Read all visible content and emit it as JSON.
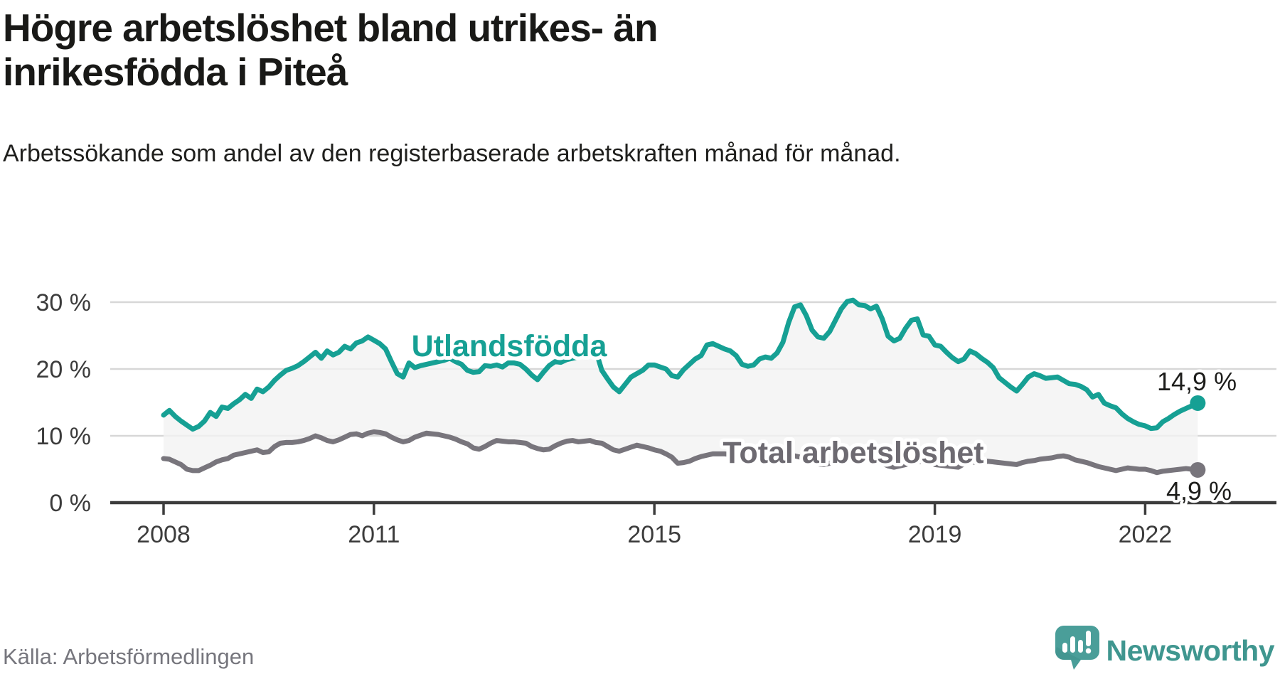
{
  "header": {
    "title_lines": [
      "Högre arbetslöshet bland utrikes- än",
      "inrikesfödda i Piteå"
    ],
    "subtitle": "Arbetssökande som andel av den registerbaserade arbetskraften månad för månad."
  },
  "chart_data": {
    "type": "line",
    "title": "Högre arbetslöshet bland utrikes- än inrikesfödda i Piteå",
    "subtitle": "Arbetssökande som andel av den registerbaserade arbetskraften månad för månad.",
    "x_unit": "month",
    "x_range": [
      "2008-01",
      "2022-10"
    ],
    "x_tick_years": [
      2008,
      2011,
      2015,
      2019,
      2022
    ],
    "x_tick_labels": [
      "2008",
      "2011",
      "2015",
      "2019",
      "2022"
    ],
    "y_ticks": [
      0,
      10,
      20,
      30
    ],
    "y_tick_labels": [
      "0 %",
      "10 %",
      "20 %",
      "30 %"
    ],
    "ylim": [
      0,
      32
    ],
    "grid": true,
    "legend_position": "inline-labels",
    "band_fill": "#f2f2f2",
    "series": [
      {
        "name": "Utlandsfödda",
        "color": "#16a094",
        "end_label": "14,9 %",
        "end_value": 14.9,
        "values": [
          13.1,
          13.8,
          12.9,
          12.2,
          11.6,
          11.0,
          11.4,
          12.2,
          13.5,
          12.9,
          14.3,
          14.1,
          14.8,
          15.4,
          16.2,
          15.6,
          17.0,
          16.6,
          17.3,
          18.3,
          19.1,
          19.8,
          20.1,
          20.5,
          21.1,
          21.8,
          22.5,
          21.6,
          22.7,
          22.1,
          22.5,
          23.4,
          23.0,
          23.9,
          24.2,
          24.8,
          24.3,
          23.8,
          23.0,
          21.1,
          19.3,
          18.8,
          20.9,
          20.2,
          20.5,
          20.7,
          20.9,
          21.1,
          21.3,
          21.6,
          21.1,
          20.7,
          19.8,
          19.5,
          19.6,
          20.5,
          20.4,
          20.6,
          20.3,
          20.9,
          20.9,
          20.7,
          20.0,
          19.1,
          18.4,
          19.5,
          20.5,
          21.1,
          21.0,
          21.4,
          21.6,
          21.8,
          22.0,
          22.5,
          22.7,
          19.8,
          18.5,
          17.3,
          16.6,
          17.7,
          18.8,
          19.3,
          19.8,
          20.6,
          20.6,
          20.3,
          20.0,
          19.0,
          18.8,
          19.9,
          20.7,
          21.5,
          22.0,
          23.6,
          23.8,
          23.4,
          23.0,
          22.7,
          22.0,
          20.7,
          20.4,
          20.6,
          21.5,
          21.8,
          21.6,
          22.4,
          24.0,
          27.0,
          29.3,
          29.6,
          28.0,
          25.8,
          24.8,
          24.6,
          25.6,
          27.3,
          29.0,
          30.1,
          30.3,
          29.6,
          29.5,
          29.0,
          29.4,
          27.5,
          24.9,
          24.2,
          24.6,
          26.1,
          27.3,
          27.5,
          25.1,
          24.9,
          23.6,
          23.4,
          22.5,
          21.7,
          21.1,
          21.5,
          22.7,
          22.3,
          21.6,
          21.0,
          20.2,
          18.7,
          18.0,
          17.3,
          16.7,
          17.7,
          18.8,
          19.3,
          19.0,
          18.6,
          18.7,
          18.8,
          18.3,
          17.8,
          17.7,
          17.4,
          16.9,
          15.8,
          16.2,
          14.9,
          14.5,
          14.2,
          13.3,
          12.6,
          12.1,
          11.7,
          11.5,
          11.1,
          11.2,
          12.1,
          12.6,
          13.2,
          13.7,
          14.1,
          14.5,
          14.9
        ]
      },
      {
        "name": "Total arbetslöshet",
        "color": "#78757c",
        "end_label": "4,9 %",
        "end_value": 4.9,
        "values": [
          6.6,
          6.5,
          6.1,
          5.7,
          5.0,
          4.8,
          4.8,
          5.2,
          5.6,
          6.1,
          6.4,
          6.6,
          7.1,
          7.3,
          7.5,
          7.7,
          7.9,
          7.5,
          7.6,
          8.4,
          8.9,
          9.0,
          9.0,
          9.1,
          9.3,
          9.6,
          10.0,
          9.7,
          9.3,
          9.1,
          9.4,
          9.8,
          10.2,
          10.3,
          10.0,
          10.4,
          10.6,
          10.5,
          10.3,
          9.8,
          9.4,
          9.1,
          9.3,
          9.8,
          10.1,
          10.4,
          10.3,
          10.2,
          10.0,
          9.8,
          9.5,
          9.1,
          8.8,
          8.2,
          8.0,
          8.4,
          8.9,
          9.3,
          9.2,
          9.1,
          9.1,
          9.0,
          8.9,
          8.4,
          8.1,
          7.9,
          8.0,
          8.5,
          8.9,
          9.2,
          9.3,
          9.1,
          9.2,
          9.3,
          9.0,
          8.9,
          8.4,
          7.9,
          7.7,
          8.0,
          8.3,
          8.6,
          8.4,
          8.2,
          7.9,
          7.7,
          7.3,
          6.8,
          5.9,
          6.0,
          6.2,
          6.6,
          6.9,
          7.1,
          7.3,
          7.3,
          7.3,
          7.2,
          7.1,
          6.6,
          6.0,
          6.2,
          6.4,
          6.6,
          6.7,
          6.9,
          7.0,
          7.1,
          7.0,
          6.8,
          6.5,
          6.2,
          5.8,
          5.7,
          5.9,
          6.3,
          6.6,
          6.8,
          6.9,
          6.8,
          6.7,
          6.4,
          6.2,
          5.9,
          5.5,
          5.3,
          5.5,
          5.7,
          6.0,
          6.1,
          6.2,
          6.2,
          5.7,
          5.6,
          5.5,
          5.4,
          5.3,
          5.8,
          6.2,
          6.0,
          5.9,
          6.2,
          6.1,
          6.0,
          5.9,
          5.8,
          5.7,
          6.0,
          6.2,
          6.3,
          6.5,
          6.6,
          6.7,
          6.9,
          7.0,
          6.8,
          6.4,
          6.2,
          6.0,
          5.7,
          5.4,
          5.2,
          5.0,
          4.8,
          5.0,
          5.2,
          5.1,
          5.0,
          5.0,
          4.8,
          4.5,
          4.7,
          4.8,
          4.9,
          5.0,
          5.1,
          5.0,
          4.9
        ]
      }
    ]
  },
  "footer": {
    "source": "Källa: Arbetsförmedlingen",
    "brand": "Newsworthy"
  },
  "colors": {
    "accent_teal": "#16a094",
    "line_gray": "#78757c",
    "brand_teal": "#3f968f",
    "logo_teal": "#4a9e99",
    "grid": "#d7d7d7",
    "axis": "#3c3c3c",
    "label_dark": "#1d1d1b"
  }
}
